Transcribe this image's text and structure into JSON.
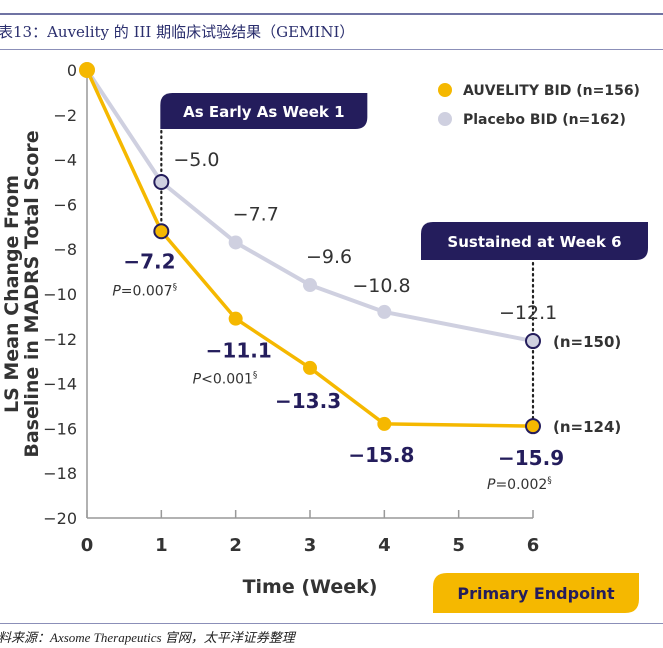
{
  "figure": {
    "title": "表13：Auvelity 的 III 期临床试验结果（GEMINI）",
    "source": "料来源：Axsome Therapeutics 官网，太平洋证券整理"
  },
  "chart_data": {
    "type": "line",
    "title": "",
    "xlabel": "Time (Week)",
    "ylabel": "LS Mean Change From Baseline in MADRS Total Score",
    "x": [
      0,
      1,
      2,
      3,
      4,
      5,
      6
    ],
    "xticks": [
      "0",
      "1",
      "2",
      "3",
      "4",
      "5",
      "6"
    ],
    "yticks": [
      "0",
      "-2",
      "-4",
      "-6",
      "-8",
      "-10",
      "-12",
      "-14",
      "-16",
      "-18",
      "-20"
    ],
    "ylim": [
      -20,
      0
    ],
    "xlim": [
      0,
      6
    ],
    "grid": false,
    "legend_position": "top-right",
    "series": [
      {
        "name": "AUVELITY BID (n=156)",
        "color": "#f5b800",
        "x": [
          0,
          1,
          2,
          3,
          4,
          6
        ],
        "values": [
          0,
          -7.2,
          -11.1,
          -13.3,
          -15.8,
          -15.9
        ],
        "labels": [
          "",
          "-7.2",
          "-11.1",
          "-13.3",
          "-15.8",
          "-15.9"
        ],
        "pvalues": [
          {
            "week": 1,
            "text": "P=0.007§"
          },
          {
            "week": 2,
            "text": "P<0.001§"
          },
          {
            "week": 6,
            "text": "P=0.002§"
          }
        ],
        "end_n": "(n=124)"
      },
      {
        "name": "Placebo BID (n=162)",
        "color": "#cfd0e0",
        "x": [
          0,
          1,
          2,
          3,
          4,
          6
        ],
        "values": [
          0,
          -5.0,
          -7.7,
          -9.6,
          -10.8,
          -12.1
        ],
        "labels": [
          "",
          "-5.0",
          "-7.7",
          "-9.6",
          "-10.8",
          "-12.1"
        ],
        "end_n": "(n=150)"
      }
    ],
    "annotations": [
      {
        "text": "As Early As Week 1",
        "week": 1
      },
      {
        "text": "Sustained at Week 6",
        "week": 6
      },
      {
        "text": "Primary Endpoint",
        "week": 6
      }
    ],
    "colors": {
      "banner": "#241d5c",
      "endpoint": "#f5b800",
      "axis": "#999999",
      "marker_outline": "#241d5c"
    }
  }
}
